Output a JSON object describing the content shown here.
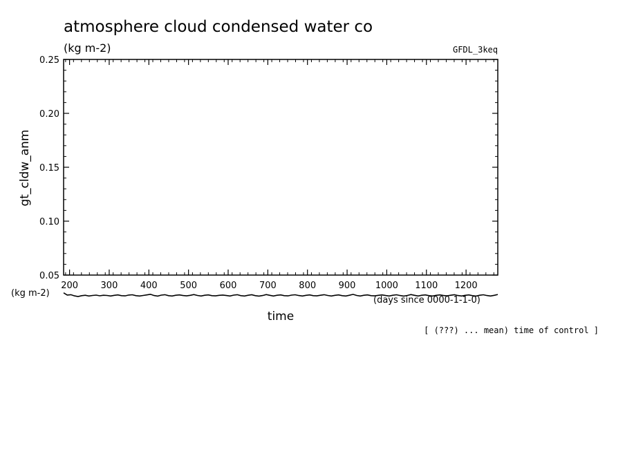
{
  "chart_data": {
    "type": "line",
    "title": "atmosphere cloud condensed water co",
    "units": "(kg m-2)",
    "model": "GFDL_3keq",
    "ylabel": "gt_cldw_anm",
    "yunits": "(kg m-2)",
    "xlabel": "time",
    "xunits": "(days since 0000-1-1-0)",
    "ylim": [
      0.05,
      0.25
    ],
    "xlim": [
      185,
      1280
    ],
    "xticks": [
      200,
      300,
      400,
      500,
      600,
      700,
      800,
      900,
      1000,
      1100,
      1200
    ],
    "xtick_labels": [
      "200",
      "300",
      "400",
      "500",
      "600",
      "700",
      "800",
      "900",
      "1000",
      "1100",
      "1200"
    ],
    "yticks": [
      0.05,
      0.1,
      0.15,
      0.2,
      0.25
    ],
    "ytick_labels": [
      "0.05",
      "0.10",
      "0.15",
      "0.20",
      "0.25"
    ],
    "annotation": "[ (???) ... mean) time of control ]",
    "series": [
      {
        "values": [
          0.0335,
          0.0315,
          0.0318,
          0.0307,
          0.0301,
          0.0309,
          0.0313,
          0.0306,
          0.0311,
          0.0314,
          0.0308,
          0.0313,
          0.0311,
          0.0306,
          0.0312,
          0.0316,
          0.0309,
          0.0307,
          0.0315,
          0.0317,
          0.0309,
          0.0306,
          0.0311,
          0.0316,
          0.0322,
          0.031,
          0.0305,
          0.0314,
          0.0318,
          0.0309,
          0.0306,
          0.0313,
          0.0316,
          0.031,
          0.0307,
          0.0312,
          0.0319,
          0.0311,
          0.0306,
          0.0313,
          0.0316,
          0.0309,
          0.0307,
          0.0312,
          0.0315,
          0.031,
          0.0306,
          0.0314,
          0.0318,
          0.0309,
          0.0306,
          0.0313,
          0.0317,
          0.0309,
          0.0305,
          0.031,
          0.0319,
          0.0312,
          0.0306,
          0.0313,
          0.0316,
          0.0309,
          0.0307,
          0.0314,
          0.0317,
          0.031,
          0.0306,
          0.0312,
          0.0316,
          0.0309,
          0.0307,
          0.0313,
          0.0318,
          0.0311,
          0.0306,
          0.0312,
          0.0316,
          0.0309,
          0.0306,
          0.0313,
          0.0321,
          0.0311,
          0.0306,
          0.0313,
          0.0316,
          0.0309,
          0.0307,
          0.0312,
          0.0316,
          0.031,
          0.0306,
          0.0313,
          0.0317,
          0.031,
          0.0305,
          0.0311,
          0.0319,
          0.0312,
          0.0306,
          0.0313,
          0.0316,
          0.0309,
          0.0306,
          0.0312,
          0.0316,
          0.031,
          0.0307,
          0.0313,
          0.0318,
          0.031,
          0.0306,
          0.0312,
          0.0316,
          0.0309,
          0.0305,
          0.0313,
          0.0317,
          0.031,
          0.0306,
          0.0312,
          0.032
        ]
      }
    ],
    "grid": false,
    "line_color": "#000000"
  }
}
